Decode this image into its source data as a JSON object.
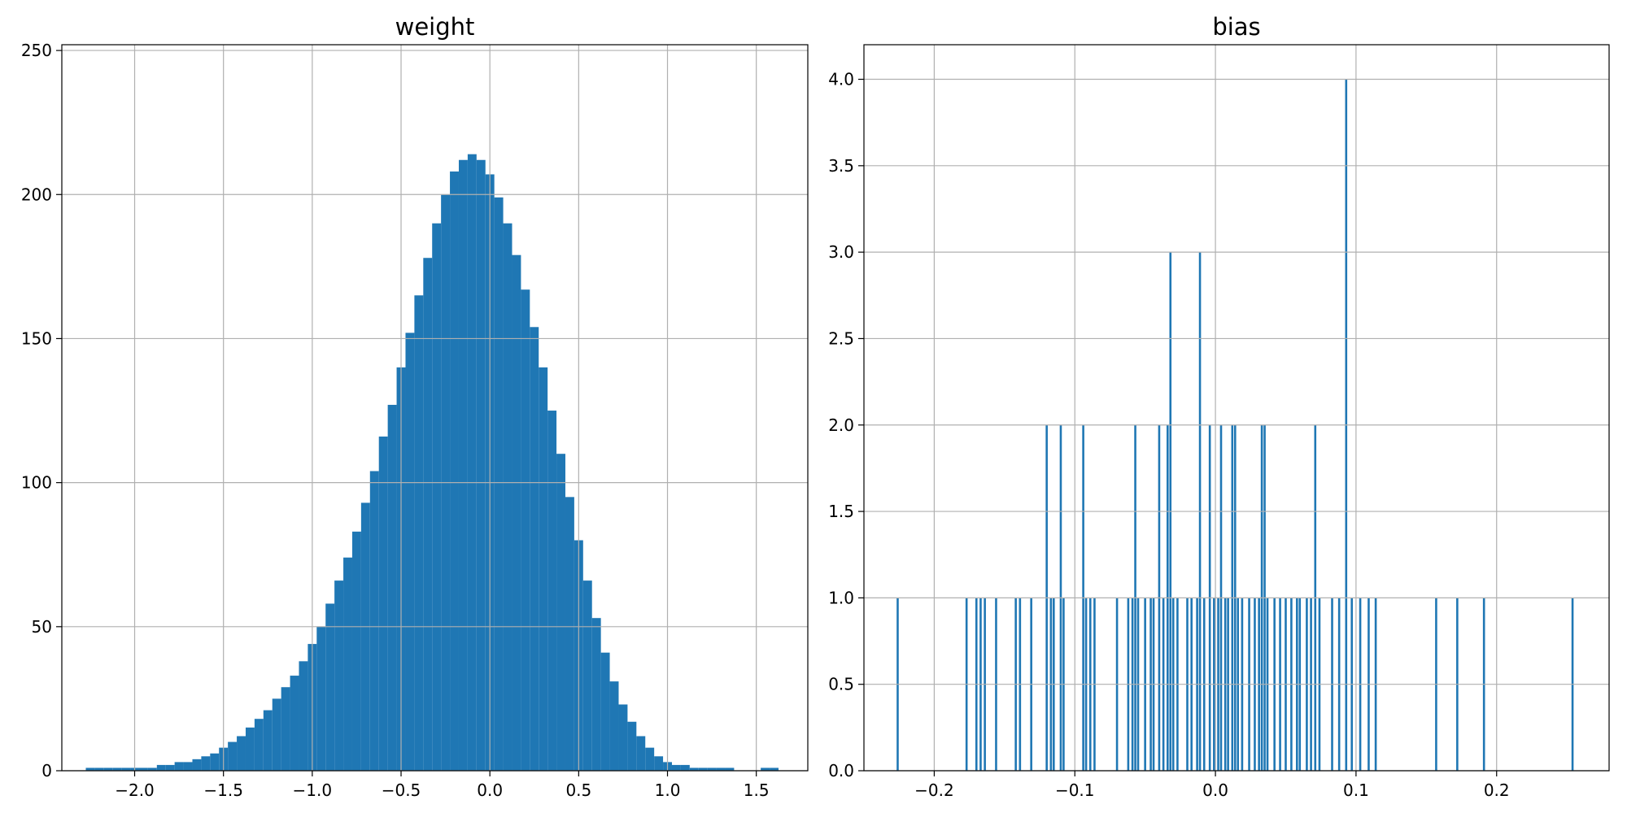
{
  "chart_data": [
    {
      "type": "bar",
      "title": "weight",
      "xlabel": "",
      "ylabel": "",
      "grid": true,
      "bar_color": "#1f77b4",
      "xlim": [
        -2.41,
        1.79
      ],
      "ylim": [
        0,
        252
      ],
      "xticks": [
        -2.0,
        -1.5,
        -1.0,
        -0.5,
        0.0,
        0.5,
        1.0,
        1.5
      ],
      "xtick_labels": [
        "−2.0",
        "−1.5",
        "−1.0",
        "−0.5",
        "0.0",
        "0.5",
        "1.0",
        "1.5"
      ],
      "yticks": [
        0,
        50,
        100,
        150,
        200,
        250
      ],
      "ytick_labels": [
        "0",
        "50",
        "100",
        "150",
        "200",
        "250"
      ],
      "bin_width": 0.05,
      "bins": [
        {
          "x": -2.25,
          "y": 1
        },
        {
          "x": -2.2,
          "y": 1
        },
        {
          "x": -2.15,
          "y": 1
        },
        {
          "x": -2.1,
          "y": 1
        },
        {
          "x": -2.05,
          "y": 1
        },
        {
          "x": -2.0,
          "y": 1
        },
        {
          "x": -1.95,
          "y": 1
        },
        {
          "x": -1.9,
          "y": 1
        },
        {
          "x": -1.85,
          "y": 2
        },
        {
          "x": -1.8,
          "y": 2
        },
        {
          "x": -1.75,
          "y": 3
        },
        {
          "x": -1.7,
          "y": 3
        },
        {
          "x": -1.65,
          "y": 4
        },
        {
          "x": -1.6,
          "y": 5
        },
        {
          "x": -1.55,
          "y": 6
        },
        {
          "x": -1.5,
          "y": 8
        },
        {
          "x": -1.45,
          "y": 10
        },
        {
          "x": -1.4,
          "y": 12
        },
        {
          "x": -1.35,
          "y": 15
        },
        {
          "x": -1.3,
          "y": 18
        },
        {
          "x": -1.25,
          "y": 21
        },
        {
          "x": -1.2,
          "y": 25
        },
        {
          "x": -1.15,
          "y": 29
        },
        {
          "x": -1.1,
          "y": 33
        },
        {
          "x": -1.05,
          "y": 38
        },
        {
          "x": -1.0,
          "y": 44
        },
        {
          "x": -0.95,
          "y": 50
        },
        {
          "x": -0.9,
          "y": 58
        },
        {
          "x": -0.85,
          "y": 66
        },
        {
          "x": -0.8,
          "y": 74
        },
        {
          "x": -0.75,
          "y": 83
        },
        {
          "x": -0.7,
          "y": 93
        },
        {
          "x": -0.65,
          "y": 104
        },
        {
          "x": -0.6,
          "y": 116
        },
        {
          "x": -0.55,
          "y": 127
        },
        {
          "x": -0.5,
          "y": 140
        },
        {
          "x": -0.45,
          "y": 152
        },
        {
          "x": -0.4,
          "y": 165
        },
        {
          "x": -0.35,
          "y": 178
        },
        {
          "x": -0.3,
          "y": 190
        },
        {
          "x": -0.25,
          "y": 200
        },
        {
          "x": -0.2,
          "y": 208
        },
        {
          "x": -0.15,
          "y": 212
        },
        {
          "x": -0.1,
          "y": 214
        },
        {
          "x": -0.05,
          "y": 212
        },
        {
          "x": 0.0,
          "y": 207
        },
        {
          "x": 0.05,
          "y": 199
        },
        {
          "x": 0.1,
          "y": 190
        },
        {
          "x": 0.15,
          "y": 179
        },
        {
          "x": 0.2,
          "y": 167
        },
        {
          "x": 0.25,
          "y": 154
        },
        {
          "x": 0.3,
          "y": 140
        },
        {
          "x": 0.35,
          "y": 125
        },
        {
          "x": 0.4,
          "y": 110
        },
        {
          "x": 0.45,
          "y": 95
        },
        {
          "x": 0.5,
          "y": 80
        },
        {
          "x": 0.55,
          "y": 66
        },
        {
          "x": 0.6,
          "y": 53
        },
        {
          "x": 0.65,
          "y": 41
        },
        {
          "x": 0.7,
          "y": 31
        },
        {
          "x": 0.75,
          "y": 23
        },
        {
          "x": 0.8,
          "y": 17
        },
        {
          "x": 0.85,
          "y": 12
        },
        {
          "x": 0.9,
          "y": 8
        },
        {
          "x": 0.95,
          "y": 5
        },
        {
          "x": 1.0,
          "y": 3
        },
        {
          "x": 1.05,
          "y": 2
        },
        {
          "x": 1.1,
          "y": 2
        },
        {
          "x": 1.15,
          "y": 1
        },
        {
          "x": 1.2,
          "y": 1
        },
        {
          "x": 1.25,
          "y": 1
        },
        {
          "x": 1.3,
          "y": 1
        },
        {
          "x": 1.35,
          "y": 1
        },
        {
          "x": 1.55,
          "y": 1
        },
        {
          "x": 1.6,
          "y": 1
        }
      ]
    },
    {
      "type": "bar",
      "title": "bias",
      "xlabel": "",
      "ylabel": "",
      "grid": true,
      "bar_color": "#1f77b4",
      "xlim": [
        -0.25,
        0.28
      ],
      "ylim": [
        0,
        4.2
      ],
      "xticks": [
        -0.2,
        -0.1,
        0.0,
        0.1,
        0.2
      ],
      "xtick_labels": [
        "−0.2",
        "−0.1",
        "0.0",
        "0.1",
        "0.2"
      ],
      "yticks": [
        0,
        0.5,
        1.0,
        1.5,
        2.0,
        2.5,
        3.0,
        3.5,
        4.0
      ],
      "ytick_labels": [
        "0.0",
        "0.5",
        "1.0",
        "1.5",
        "2.0",
        "2.5",
        "3.0",
        "3.5",
        "4.0"
      ],
      "bin_width": 0.0015,
      "bins": [
        {
          "x": -0.226,
          "y": 1
        },
        {
          "x": -0.177,
          "y": 1
        },
        {
          "x": -0.17,
          "y": 1
        },
        {
          "x": -0.167,
          "y": 1
        },
        {
          "x": -0.164,
          "y": 1
        },
        {
          "x": -0.156,
          "y": 1
        },
        {
          "x": -0.142,
          "y": 1
        },
        {
          "x": -0.139,
          "y": 1
        },
        {
          "x": -0.131,
          "y": 1
        },
        {
          "x": -0.12,
          "y": 2
        },
        {
          "x": -0.117,
          "y": 1
        },
        {
          "x": -0.115,
          "y": 1
        },
        {
          "x": -0.11,
          "y": 2
        },
        {
          "x": -0.108,
          "y": 1
        },
        {
          "x": -0.094,
          "y": 2
        },
        {
          "x": -0.092,
          "y": 1
        },
        {
          "x": -0.089,
          "y": 1
        },
        {
          "x": -0.086,
          "y": 1
        },
        {
          "x": -0.07,
          "y": 1
        },
        {
          "x": -0.062,
          "y": 1
        },
        {
          "x": -0.059,
          "y": 1
        },
        {
          "x": -0.057,
          "y": 2
        },
        {
          "x": -0.055,
          "y": 1
        },
        {
          "x": -0.05,
          "y": 1
        },
        {
          "x": -0.046,
          "y": 1
        },
        {
          "x": -0.044,
          "y": 1
        },
        {
          "x": -0.04,
          "y": 2
        },
        {
          "x": -0.037,
          "y": 1
        },
        {
          "x": -0.034,
          "y": 2
        },
        {
          "x": -0.032,
          "y": 3
        },
        {
          "x": -0.03,
          "y": 1
        },
        {
          "x": -0.027,
          "y": 1
        },
        {
          "x": -0.02,
          "y": 1
        },
        {
          "x": -0.017,
          "y": 1
        },
        {
          "x": -0.013,
          "y": 1
        },
        {
          "x": -0.011,
          "y": 3
        },
        {
          "x": -0.008,
          "y": 1
        },
        {
          "x": -0.004,
          "y": 2
        },
        {
          "x": -0.001,
          "y": 1
        },
        {
          "x": 0.002,
          "y": 1
        },
        {
          "x": 0.004,
          "y": 2
        },
        {
          "x": 0.007,
          "y": 1
        },
        {
          "x": 0.009,
          "y": 1
        },
        {
          "x": 0.012,
          "y": 2
        },
        {
          "x": 0.014,
          "y": 2
        },
        {
          "x": 0.016,
          "y": 1
        },
        {
          "x": 0.019,
          "y": 1
        },
        {
          "x": 0.024,
          "y": 1
        },
        {
          "x": 0.028,
          "y": 1
        },
        {
          "x": 0.031,
          "y": 1
        },
        {
          "x": 0.033,
          "y": 2
        },
        {
          "x": 0.035,
          "y": 2
        },
        {
          "x": 0.037,
          "y": 1
        },
        {
          "x": 0.042,
          "y": 1
        },
        {
          "x": 0.046,
          "y": 1
        },
        {
          "x": 0.05,
          "y": 1
        },
        {
          "x": 0.054,
          "y": 1
        },
        {
          "x": 0.058,
          "y": 1
        },
        {
          "x": 0.06,
          "y": 1
        },
        {
          "x": 0.065,
          "y": 1
        },
        {
          "x": 0.068,
          "y": 1
        },
        {
          "x": 0.071,
          "y": 2
        },
        {
          "x": 0.074,
          "y": 1
        },
        {
          "x": 0.083,
          "y": 1
        },
        {
          "x": 0.088,
          "y": 1
        },
        {
          "x": 0.093,
          "y": 4
        },
        {
          "x": 0.097,
          "y": 1
        },
        {
          "x": 0.103,
          "y": 1
        },
        {
          "x": 0.109,
          "y": 1
        },
        {
          "x": 0.114,
          "y": 1
        },
        {
          "x": 0.157,
          "y": 1
        },
        {
          "x": 0.172,
          "y": 1
        },
        {
          "x": 0.191,
          "y": 1
        },
        {
          "x": 0.254,
          "y": 1
        }
      ]
    }
  ]
}
